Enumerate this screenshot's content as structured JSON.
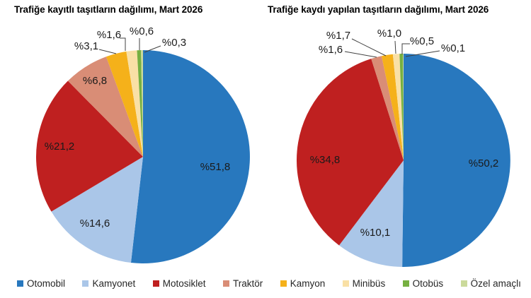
{
  "chart_data": [
    {
      "type": "pie",
      "title": "Trafiğe kayıtlı taşıtların dağılımı, Mart 2026",
      "unit": "percent",
      "start_angle_deg": -90,
      "direction": "clockwise",
      "categories": [
        "Otomobil",
        "Kamyonet",
        "Motosiklet",
        "Traktör",
        "Kamyon",
        "Minibüs",
        "Otobüs",
        "Özel amaçlı"
      ],
      "keys": [
        "otomobil",
        "kamyonet",
        "motosiklet",
        "traktor",
        "kamyon",
        "minibus",
        "otobus",
        "ozel-amacli"
      ],
      "values": [
        51.8,
        14.6,
        21.2,
        6.8,
        3.1,
        1.6,
        0.6,
        0.3
      ],
      "labels": [
        "%51,8",
        "%14,6",
        "%21,2",
        "%6,8",
        "%3,1",
        "%1,6",
        "%0,6",
        "%0,3"
      ],
      "colors": [
        "#2878BE",
        "#AAC6E8",
        "#BF2020",
        "#D98D76",
        "#F5B11A",
        "#F9E0A5",
        "#76B041",
        "#CBDA9B"
      ]
    },
    {
      "type": "pie",
      "title": "Trafiğe kaydı yapılan taşıtların dağılımı, Mart 2026",
      "unit": "percent",
      "start_angle_deg": -90,
      "direction": "clockwise",
      "categories": [
        "Otomobil",
        "Kamyonet",
        "Motosiklet",
        "Traktör",
        "Kamyon",
        "Minibüs",
        "Otobüs",
        "Özel amaçlı"
      ],
      "keys": [
        "otomobil",
        "kamyonet",
        "motosiklet",
        "traktor",
        "kamyon",
        "minibus",
        "otobus",
        "ozel-amacli"
      ],
      "values": [
        50.2,
        10.1,
        34.8,
        1.6,
        1.7,
        1.0,
        0.5,
        0.1
      ],
      "labels": [
        "%50,2",
        "%10,1",
        "%34,8",
        "%1,6",
        "%1,7",
        "%1,0",
        "%0,5",
        "%0,1"
      ],
      "colors": [
        "#2878BE",
        "#AAC6E8",
        "#BF2020",
        "#D98D76",
        "#F5B11A",
        "#F9E0A5",
        "#76B041",
        "#CBDA9B"
      ]
    }
  ],
  "legend": {
    "items": [
      {
        "key": "otomobil",
        "label": "Otomobil",
        "color": "#2878BE"
      },
      {
        "key": "kamyonet",
        "label": "Kamyonet",
        "color": "#AAC6E8"
      },
      {
        "key": "motosiklet",
        "label": "Motosiklet",
        "color": "#BF2020"
      },
      {
        "key": "traktor",
        "label": "Traktör",
        "color": "#D98D76"
      },
      {
        "key": "kamyon",
        "label": "Kamyon",
        "color": "#F5B11A"
      },
      {
        "key": "minibus",
        "label": "Minibüs",
        "color": "#F9E0A5"
      },
      {
        "key": "otobus",
        "label": "Otobüs",
        "color": "#76B041"
      },
      {
        "key": "ozel-amacli",
        "label": "Özel amaçlı",
        "color": "#CBDA9B"
      }
    ]
  }
}
